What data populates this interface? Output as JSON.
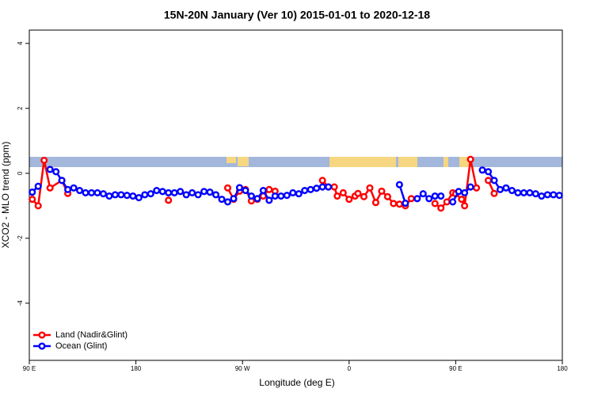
{
  "chart_data": {
    "type": "line",
    "title": "15N-20N January (Ver 10)   2015-01-01 to 2020-12-18",
    "x_label": "Longitude (deg E)",
    "y_label": "XCO2 - MLO trend (ppm)",
    "xlim": [
      90,
      540
    ],
    "xticks": [
      {
        "value": 90,
        "label": "90 E"
      },
      180,
      {
        "value": 270,
        "label": "90 W"
      },
      {
        "value": 360,
        "label": "0"
      },
      {
        "value": 450,
        "label": "90 E"
      },
      {
        "value": 540,
        "label": "180"
      }
    ],
    "ylim": [
      -5.76,
      4.41
    ],
    "yticks": [
      -4,
      -2,
      0,
      2,
      4
    ],
    "legend": "bottom-left",
    "series": [
      {
        "name": "Land (Nadir&Glint)",
        "color": "#ff0000",
        "x": [
          92.5,
          97.5,
          102.5,
          107.5,
          117.5,
          122.5,
          160,
          207.5,
          230,
          257.5,
          262.5,
          267.5,
          272.5,
          277.5,
          282.5,
          287.5,
          292.5,
          297.5,
          320,
          337.5,
          342.5,
          347.5,
          350,
          355,
          360,
          365,
          367.5,
          372.5,
          377.5,
          382.5,
          387.5,
          392.5,
          397.5,
          402.5,
          407.5,
          412.5,
          420,
          432.5,
          437.5,
          442.5,
          447.5,
          450,
          455,
          457.5,
          462.5,
          467.5,
          472,
          477.5,
          482.5
        ],
        "values": [
          -0.8,
          -1.0,
          0.4,
          -0.45,
          -0.22,
          -0.62,
          null,
          -0.83,
          null,
          -0.45,
          -0.8,
          -0.55,
          -0.5,
          -0.85,
          -0.8,
          -0.7,
          -0.5,
          -0.55,
          null,
          -0.22,
          -0.42,
          -0.42,
          -0.7,
          -0.6,
          -0.8,
          -0.7,
          -0.62,
          -0.72,
          -0.45,
          -0.9,
          -0.55,
          -0.72,
          -0.93,
          -0.95,
          -1.0,
          -0.78,
          null,
          -0.93,
          -1.07,
          -0.88,
          -0.6,
          -0.63,
          -0.8,
          -1.0,
          0.43,
          -0.45,
          null,
          -0.22,
          -0.62
        ]
      },
      {
        "name": "Ocean (Glint)",
        "color": "#0000ff",
        "x": [
          92.5,
          97.5,
          102.5,
          107.5,
          112.5,
          117.5,
          122.5,
          127.5,
          132.5,
          137.5,
          142.5,
          147.5,
          152.5,
          157.5,
          162.5,
          167.5,
          172.5,
          177.5,
          182.5,
          187.5,
          192.5,
          197.5,
          202.5,
          207.5,
          212.5,
          217.5,
          222.5,
          227.5,
          232.5,
          237.5,
          242.5,
          247.5,
          252.5,
          257.5,
          262.5,
          267.5,
          272.5,
          277.5,
          282.5,
          287.5,
          292.5,
          297.5,
          302.5,
          307.5,
          312.5,
          317.5,
          322.5,
          327.5,
          332.5,
          337.5,
          342.5,
          370,
          402.5,
          407.5,
          412.5,
          417.5,
          422.5,
          427.5,
          432.5,
          437.5,
          442.5,
          447.5,
          452.5,
          457.5,
          462.5,
          467.5,
          472.5,
          477.5,
          482.5,
          487.5,
          492.5,
          497.5,
          502.5,
          507.5,
          512.5,
          517.5,
          522.5,
          527.5,
          532.5,
          537.5
        ],
        "values": [
          -0.58,
          -0.4,
          null,
          0.12,
          0.05,
          -0.22,
          -0.5,
          -0.45,
          -0.53,
          -0.6,
          -0.6,
          -0.6,
          -0.63,
          -0.7,
          -0.66,
          -0.66,
          -0.68,
          -0.7,
          -0.75,
          -0.66,
          -0.63,
          -0.53,
          -0.56,
          -0.6,
          -0.6,
          -0.56,
          -0.66,
          -0.6,
          -0.66,
          -0.56,
          -0.58,
          -0.66,
          -0.8,
          -0.88,
          -0.78,
          -0.44,
          -0.53,
          -0.7,
          -0.78,
          -0.53,
          -0.83,
          -0.7,
          -0.7,
          -0.68,
          -0.6,
          -0.63,
          -0.53,
          -0.5,
          -0.46,
          -0.42,
          -0.42,
          null,
          -0.35,
          -0.92,
          null,
          -0.78,
          -0.63,
          -0.78,
          -0.7,
          -0.7,
          null,
          -0.88,
          -0.56,
          -0.6,
          -0.42,
          null,
          0.1,
          0.05,
          -0.22,
          -0.5,
          -0.45,
          -0.53,
          -0.6,
          -0.6,
          -0.6,
          -0.63,
          -0.7,
          -0.66,
          -0.66,
          -0.68
        ]
      }
    ]
  }
}
